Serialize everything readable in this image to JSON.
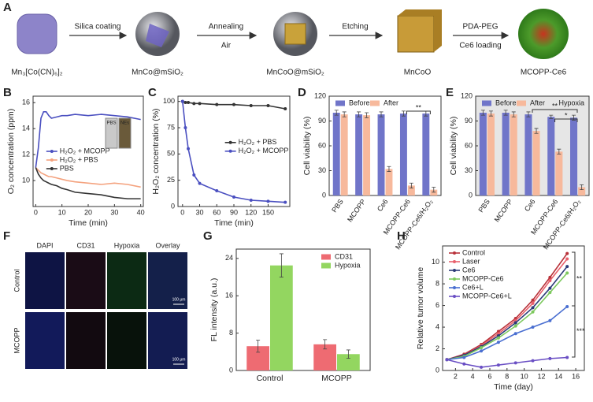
{
  "scheme": {
    "panel": "A",
    "stages": [
      "Mn₃[Co(CN)₆]₂",
      "MnCo@mSiO₂",
      "MnCoO@mSiO₂",
      "MnCoO",
      "MCOPP-Ce6"
    ],
    "steps": [
      [
        "Silica coating"
      ],
      [
        "Annealing",
        "Air"
      ],
      [
        "Etching"
      ],
      [
        "PDA-PEG",
        "Ce6 loading"
      ]
    ]
  },
  "microscopy": {
    "panel": "F",
    "columns": [
      "DAPI",
      "CD31",
      "Hypoxia",
      "Overlay"
    ],
    "rows": [
      "Control",
      "MCOPP"
    ],
    "scale_bar": "100 μm"
  },
  "chart_data": [
    {
      "panel": "B",
      "type": "line",
      "x_label": "Time (min)",
      "y_label": "O₂ concentration (ppm)",
      "x": [
        0,
        1,
        2,
        3,
        4,
        5,
        6,
        8,
        10,
        12,
        15,
        20,
        25,
        30,
        35,
        40
      ],
      "xlim": [
        -1,
        41
      ],
      "xticks": [
        0,
        10,
        20,
        30,
        40
      ],
      "ylim": [
        8,
        16.5
      ],
      "yticks": [
        10,
        12,
        14,
        16
      ],
      "legend": "center",
      "markers": false,
      "inset_labels": [
        "PBS",
        "NEs"
      ],
      "series": [
        {
          "name": "H₂O₂ + MCOPP",
          "color": "#4a4fc0",
          "values": [
            11,
            12.5,
            14.8,
            15.3,
            15.3,
            15.0,
            14.8,
            14.9,
            15.0,
            15.0,
            15.1,
            15.0,
            15.1,
            15.0,
            14.9,
            14.7
          ]
        },
        {
          "name": "H₂O₂ + PBS",
          "color": "#f4a27e",
          "values": [
            11,
            10.8,
            10.6,
            10.5,
            10.4,
            10.3,
            10.3,
            10.2,
            10.1,
            10.0,
            9.9,
            9.8,
            9.7,
            9.8,
            9.7,
            9.5
          ]
        },
        {
          "name": "PBS",
          "color": "#333333",
          "values": [
            11,
            10.5,
            10.2,
            10.0,
            9.9,
            9.8,
            9.7,
            9.6,
            9.4,
            9.3,
            9.1,
            9.0,
            8.9,
            8.7,
            8.6,
            8.6
          ]
        }
      ]
    },
    {
      "panel": "C",
      "type": "line",
      "x_label": "Time (min)",
      "y_label": "H₂O₂ concentration (%)",
      "x": [
        0,
        5,
        10,
        20,
        30,
        60,
        90,
        120,
        150,
        180
      ],
      "xlim": [
        -8,
        188
      ],
      "xticks": [
        0,
        30,
        60,
        90,
        120,
        150
      ],
      "ylim": [
        0,
        105
      ],
      "yticks": [
        0,
        25,
        50,
        75,
        100
      ],
      "legend": "center right",
      "markers": true,
      "series": [
        {
          "name": "H₂O₂ + PBS",
          "color": "#333333",
          "values": [
            100,
            99,
            99,
            98,
            98,
            97,
            97,
            96,
            96,
            93
          ]
        },
        {
          "name": "H₂O₂ + MCOPP",
          "color": "#4a4fc0",
          "values": [
            100,
            75,
            55,
            30,
            22,
            15,
            9,
            6,
            5,
            4
          ]
        }
      ]
    },
    {
      "panel": "D",
      "type": "bar",
      "y_label": "Cell viability (%)",
      "categories": [
        "PBS",
        "MCOPP",
        "Ce6",
        "MCOPP-Ce6",
        "MCOPP-Ce6/H₂O₂"
      ],
      "ylim": [
        0,
        120
      ],
      "yticks": [
        0,
        30,
        60,
        90,
        120
      ],
      "legend": "upper left",
      "annotations": [
        "**"
      ],
      "series": [
        {
          "name": "Before",
          "color": "#7075c9",
          "values": [
            100,
            98,
            98,
            99,
            99
          ],
          "errors": [
            3,
            3,
            3,
            3,
            3
          ]
        },
        {
          "name": "After",
          "color": "#f7b99c",
          "values": [
            98,
            97,
            32,
            12,
            7
          ],
          "errors": [
            3,
            3,
            3,
            3,
            3
          ]
        }
      ]
    },
    {
      "panel": "E",
      "type": "bar",
      "y_label": "Cell viability (%)",
      "condition": "Hypoxia",
      "categories": [
        "PBS",
        "MCOPP",
        "Ce6",
        "MCOPP-Ce6",
        "MCOPP-Ce6/H₂O₂"
      ],
      "ylim": [
        0,
        120
      ],
      "yticks": [
        0,
        30,
        60,
        90,
        120
      ],
      "legend": "upper left",
      "annotations": [
        "**",
        "*"
      ],
      "series": [
        {
          "name": "Before",
          "color": "#7075c9",
          "values": [
            100,
            100,
            98,
            95,
            94
          ],
          "errors": [
            3,
            3,
            3,
            2,
            3
          ]
        },
        {
          "name": "After",
          "color": "#f7b99c",
          "values": [
            99,
            98,
            78,
            53,
            10
          ],
          "errors": [
            3,
            3,
            3,
            3,
            3
          ]
        }
      ]
    },
    {
      "panel": "G",
      "type": "bar",
      "y_label": "FL intensity (a.u.)",
      "categories": [
        "Control",
        "MCOPP"
      ],
      "ylim": [
        0,
        26
      ],
      "yticks": [
        0,
        8,
        16,
        24
      ],
      "legend": "upper right",
      "series": [
        {
          "name": "CD31",
          "color": "#ee6b72",
          "values": [
            5.2,
            5.6
          ],
          "errors": [
            1.3,
            1.0
          ]
        },
        {
          "name": "Hypoxia",
          "color": "#93d660",
          "values": [
            22.5,
            3.5
          ],
          "errors": [
            2.5,
            0.9
          ]
        }
      ]
    },
    {
      "panel": "H",
      "type": "line",
      "x_label": "Time (day)",
      "y_label": "Relative tumor volume",
      "x": [
        1,
        3,
        5,
        7,
        9,
        11,
        13,
        15
      ],
      "xlim": [
        0.5,
        17
      ],
      "xticks": [
        2,
        4,
        6,
        8,
        10,
        12,
        14,
        16
      ],
      "ylim": [
        0,
        11.5
      ],
      "yticks": [
        0,
        2,
        4,
        6,
        8,
        10
      ],
      "legend": "upper left",
      "markers": true,
      "annotations": [
        "**",
        "***"
      ],
      "series": [
        {
          "name": "Control",
          "color": "#b8323a",
          "values": [
            1,
            1.5,
            2.4,
            3.6,
            4.8,
            6.5,
            8.6,
            10.8
          ]
        },
        {
          "name": "Laser",
          "color": "#e8606c",
          "values": [
            1,
            1.4,
            2.3,
            3.4,
            4.6,
            6.2,
            8.3,
            10.3
          ]
        },
        {
          "name": "Ce6",
          "color": "#2c3a78",
          "values": [
            1,
            1.4,
            2.2,
            3.2,
            4.4,
            5.8,
            7.6,
            9.6
          ]
        },
        {
          "name": "MCOPP-Ce6",
          "color": "#7dc95e",
          "values": [
            1,
            1.3,
            2.1,
            3.0,
            4.1,
            5.4,
            7.2,
            9.0
          ]
        },
        {
          "name": "Ce6+L",
          "color": "#4a6fd1",
          "values": [
            1,
            1.2,
            1.8,
            2.6,
            3.4,
            4.0,
            4.6,
            5.9
          ]
        },
        {
          "name": "MCOPP-Ce6+L",
          "color": "#6a4fc4",
          "values": [
            1,
            0.6,
            0.3,
            0.5,
            0.7,
            0.9,
            1.1,
            1.2
          ]
        }
      ]
    }
  ]
}
